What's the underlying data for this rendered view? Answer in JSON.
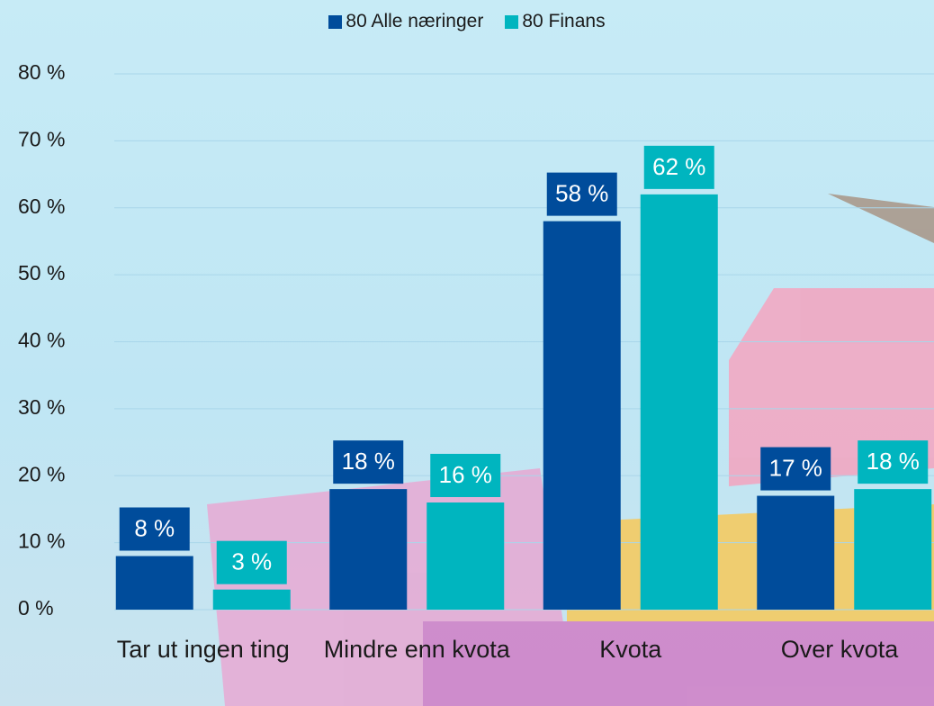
{
  "chart_data": {
    "type": "bar",
    "categories": [
      "Tar ut ingen ting",
      "Mindre enn kvota",
      "Kvota",
      "Over kvota"
    ],
    "series": [
      {
        "name": "80 Alle næringer",
        "color": "#004c9b",
        "values": [
          8,
          18,
          58,
          17
        ],
        "value_labels": [
          "8 %",
          "18 %",
          "58 %",
          "17 %"
        ]
      },
      {
        "name": "80 Finans",
        "color": "#00b5bf",
        "values": [
          3,
          16,
          62,
          18
        ],
        "value_labels": [
          "3 %",
          "16 %",
          "62 %",
          "18 %"
        ]
      }
    ],
    "ylim": [
      0,
      80
    ],
    "yticks": [
      {
        "value": 0,
        "label": "0 %"
      },
      {
        "value": 10,
        "label": "10 %"
      },
      {
        "value": 20,
        "label": "20 %"
      },
      {
        "value": 30,
        "label": "30 %"
      },
      {
        "value": 40,
        "label": "40 %"
      },
      {
        "value": 50,
        "label": "50 %"
      },
      {
        "value": 60,
        "label": "60 %"
      },
      {
        "value": 70,
        "label": "70 %"
      },
      {
        "value": 80,
        "label": "80 %"
      }
    ],
    "grid": true,
    "legend": "top"
  }
}
